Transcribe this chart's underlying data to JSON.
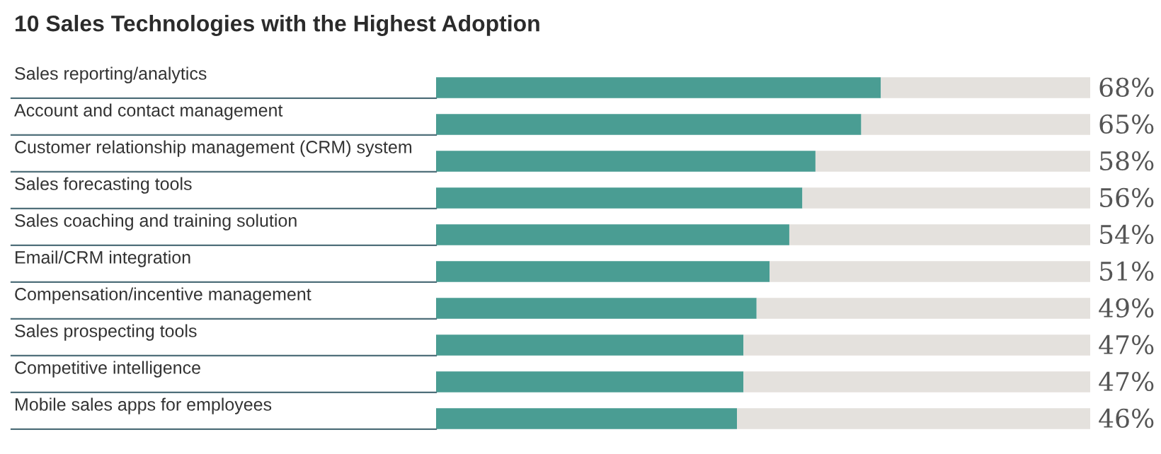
{
  "chart_data": {
    "type": "bar",
    "orientation": "horizontal",
    "stacked": true,
    "title": "10 Sales Technologies with the Highest Adoption",
    "categories": [
      "Sales reporting/analytics",
      "Account and contact management",
      "Customer relationship management (CRM) system",
      "Sales forecasting tools",
      "Sales coaching and training solution",
      "Email/CRM integration",
      "Compensation/incentive management",
      "Sales prospecting tools",
      "Competitive intelligence",
      "Mobile sales apps for employees"
    ],
    "series": [
      {
        "color": "#4a9d93",
        "values": [
          68,
          65,
          58,
          56,
          54,
          51,
          49,
          47,
          47,
          46
        ],
        "value_labels": [
          "68%",
          "65%",
          "58%",
          "56%",
          "54%",
          "51%",
          "49%",
          "47%",
          "47%",
          "46%"
        ]
      },
      {
        "color": "#e4e1dd",
        "values": [
          32,
          35,
          42,
          44,
          46,
          49,
          51,
          53,
          53,
          54
        ]
      }
    ],
    "xlim": [
      0,
      100
    ]
  }
}
